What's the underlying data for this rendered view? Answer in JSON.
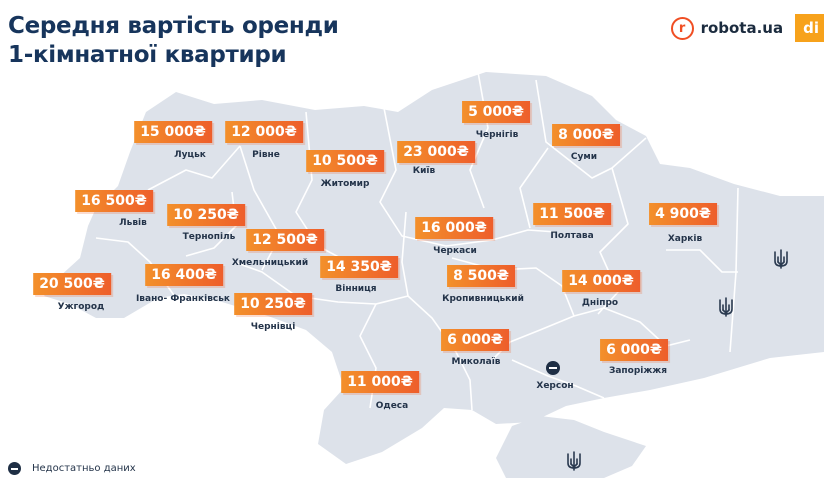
{
  "title": {
    "line1": "Середня вартість оренди",
    "line2": "1-кімнатної квартири"
  },
  "brand": {
    "name": "robota.ua",
    "logo_letter": "r",
    "tag": "di",
    "accent_color": "#f04e23"
  },
  "colors": {
    "title": "#17355c",
    "map_fill": "#dde2ea",
    "badge_start": "#f3902b",
    "badge_end": "#ee5e2b",
    "city_text": "#24344a"
  },
  "regions": [
    {
      "id": "lutsk",
      "city": "Луцьк",
      "price": "15 000₴"
    },
    {
      "id": "rivne",
      "city": "Рівне",
      "price": "12 000₴"
    },
    {
      "id": "zhytomyr",
      "city": "Житомир",
      "price": "10 500₴"
    },
    {
      "id": "kyiv",
      "city": "Київ",
      "price": "23 000₴"
    },
    {
      "id": "chernihiv",
      "city": "Чернігів",
      "price": "5 000₴"
    },
    {
      "id": "sumy",
      "city": "Суми",
      "price": "8 000₴"
    },
    {
      "id": "lviv",
      "city": "Львів",
      "price": "16 500₴"
    },
    {
      "id": "ternopil",
      "city": "Тернопіль",
      "price": "10 250₴"
    },
    {
      "id": "khmelnytskyi",
      "city": "Хмельницький",
      "price": "12 500₴"
    },
    {
      "id": "cherkasy",
      "city": "Черкаси",
      "price": "16 000₴"
    },
    {
      "id": "poltava",
      "city": "Полтава",
      "price": "11 500₴"
    },
    {
      "id": "kharkiv",
      "city": "Харків",
      "price": "4 900₴"
    },
    {
      "id": "uzhhorod",
      "city": "Ужгород",
      "price": "20 500₴"
    },
    {
      "id": "ivano_frankivsk",
      "city": "Івано- Франківськ",
      "price": "16 400₴"
    },
    {
      "id": "vinnytsia",
      "city": "Вінниця",
      "price": "14 350₴"
    },
    {
      "id": "kropyvnytskyi",
      "city": "Кропивницький",
      "price": "8 500₴"
    },
    {
      "id": "dnipro",
      "city": "Дніпро",
      "price": "14 000₴"
    },
    {
      "id": "chernivtsi",
      "city": "Чернівці",
      "price": "10 250₴"
    },
    {
      "id": "mykolaiv",
      "city": "Миколаїв",
      "price": "6 000₴"
    },
    {
      "id": "zaporizhzhia",
      "city": "Запоріжжя",
      "price": "6 000₴"
    },
    {
      "id": "odesa",
      "city": "Одеса",
      "price": "11 000₴"
    }
  ],
  "no_data_regions": [
    {
      "id": "kherson",
      "city": "Херсон"
    }
  ],
  "occupied_markers": [
    {
      "id": "luhansk",
      "icon": "trident-icon"
    },
    {
      "id": "donetsk",
      "icon": "trident-icon"
    },
    {
      "id": "crimea",
      "icon": "trident-icon"
    }
  ],
  "legend": {
    "icon": "no-data-icon",
    "text": "Недостатньо даних"
  }
}
